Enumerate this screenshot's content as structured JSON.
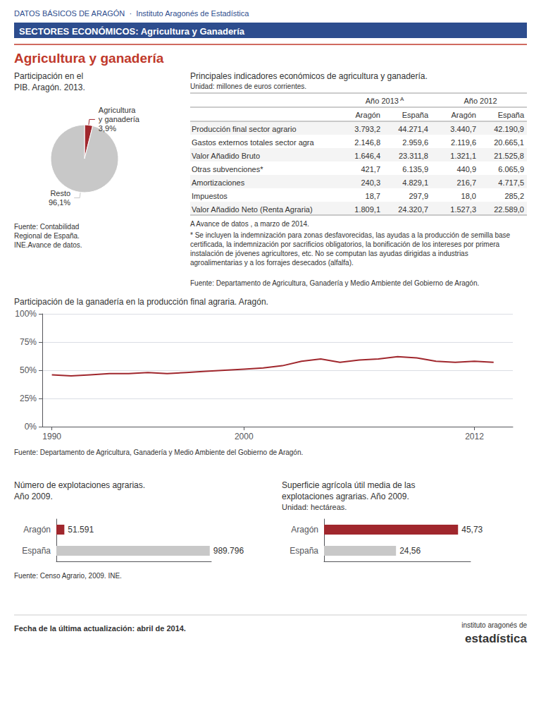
{
  "title": "Agricultura y ganadería",
  "subtitle": "SECTORES ECONÓMICOS: Agricultura y Ganadería",
  "annotations": [
    "DATOS BÁSICOS DE ARAGÓN  ·  Instituto Aragonés de Estadística",
    "Fecha de la última actualización: abril de 2014.",
    "instituto aragonés de",
    "estadística"
  ],
  "chart_data": [
    {
      "type": "pie",
      "title": "Participación en el\nPIB. Aragón. 2013.",
      "categories": [
        "Agricultura\ny ganadería",
        "Resto"
      ],
      "values": [
        3.9,
        96.1
      ],
      "value_labels": [
        "3,9%",
        "96,1%"
      ],
      "colors": [
        "#a0272d",
        "#c8c8c8"
      ],
      "data_labels": true,
      "annotations": [
        "Fuente: Contabilidad\nRegional de España.\nINE.Avance de datos."
      ]
    },
    {
      "type": "table",
      "title": "Principales indicadores económicos de agricultura y ganadería.",
      "subtitle": "Unidad: millones de euros corrientes.",
      "categories": [
        "Producción final sector agrario",
        "Gastos externos totales sector agra",
        "Valor Añadido Bruto",
        "Otras subvenciones*",
        "Amortizaciones",
        "Impuestos",
        "Valor Añadido Neto (Renta Agraria)"
      ],
      "series": [
        {
          "name": "Aragón",
          "group": "Año 2013",
          "group_mark": "A",
          "values": [
            3793.2,
            2146.8,
            1646.4,
            421.7,
            240.3,
            18.7,
            1809.1
          ],
          "value_labels": [
            "3.793,2",
            "2.146,8",
            "1.646,4",
            "421,7",
            "240,3",
            "18,7",
            "1.809,1"
          ]
        },
        {
          "name": "España",
          "group": "Año 2013",
          "group_mark": "A",
          "values": [
            44271.4,
            2959.6,
            23311.8,
            6135.9,
            4829.1,
            297.9,
            24320.7
          ],
          "value_labels": [
            "44.271,4",
            "2.959,6",
            "23.311,8",
            "6.135,9",
            "4.829,1",
            "297,9",
            "24.320,7"
          ]
        },
        {
          "name": "Aragón",
          "group": "Año 2012",
          "values": [
            3440.7,
            2119.6,
            1321.1,
            440.9,
            216.7,
            18.0,
            1527.3
          ],
          "value_labels": [
            "3.440,7",
            "2.119,6",
            "1.321,1",
            "440,9",
            "216,7",
            "18,0",
            "1.527,3"
          ]
        },
        {
          "name": "España",
          "group": "Año 2012",
          "values": [
            42190.9,
            20665.1,
            21525.8,
            6065.9,
            4717.5,
            285.2,
            22589.0
          ],
          "value_labels": [
            "42.190,9",
            "20.665,1",
            "21.525,8",
            "6.065,9",
            "4.717,5",
            "285,2",
            "22.589,0"
          ]
        }
      ],
      "annotations": [
        "A Avance de datos , a marzo de 2014.",
        "* Se incluyen la indemnización para zonas desfavorecidas, las ayudas a la producción de semilla base certificada, la indemnización por sacrificios obligatorios, la bonificación de los intereses por primera instalación de jóvenes agricultores, etc. No se computan las ayudas dirigidas a industrias agroalimentarias y a los forrajes desecados (alfalfa).",
        "Fuente: Departamento de Agricultura, Ganadería y Medio Ambiente del Gobierno de Aragón."
      ]
    },
    {
      "type": "line",
      "title": "Participación de la ganadería en la producción final agraria. Aragón.",
      "x": [
        1990,
        1991,
        1992,
        1993,
        1994,
        1995,
        1996,
        1997,
        1998,
        1999,
        2000,
        2001,
        2002,
        2003,
        2004,
        2005,
        2006,
        2007,
        2008,
        2009,
        2010,
        2011,
        2012,
        2013
      ],
      "values": [
        46,
        45,
        46,
        47,
        47,
        48,
        47,
        48,
        49,
        50,
        51,
        52,
        54,
        58,
        60,
        57,
        59,
        60,
        62,
        61,
        58,
        57,
        58,
        57
      ],
      "color": "#a0272d",
      "xlim": [
        1989.5,
        2014
      ],
      "xticks": [
        1990,
        2000,
        2012
      ],
      "ylim": [
        0,
        100
      ],
      "yticks": [
        {
          "value": 0,
          "label": "0%"
        },
        {
          "value": 25,
          "label": "25%"
        },
        {
          "value": 50,
          "label": "50%"
        },
        {
          "value": 75,
          "label": "75%"
        },
        {
          "value": 100,
          "label": "100%"
        }
      ],
      "grid": true,
      "annotations": [
        "Fuente: Departamento de Agricultura, Ganadería y Medio Ambiente del Gobierno de Aragón."
      ]
    },
    {
      "type": "bar",
      "orientation": "horizontal",
      "title": "Número de explotaciones agrarias.\nAño 2009.",
      "categories": [
        "Aragón",
        "España"
      ],
      "values": [
        51591,
        989796
      ],
      "value_labels": [
        "51.591",
        "989.796"
      ],
      "colors": [
        "#a0272d",
        "#c8c8c8"
      ],
      "data_labels": true,
      "tick_labels": "y",
      "grid": false,
      "xlim": [
        0,
        1000000
      ],
      "annotations": [
        "Fuente: Censo Agrario, 2009. INE."
      ]
    },
    {
      "type": "bar",
      "orientation": "horizontal",
      "title": "Superficie agrícola útil media de las\nexplotaciones agrarias. Año 2009.",
      "subtitle": "Unidad: hectáreas.",
      "categories": [
        "Aragón",
        "España"
      ],
      "values": [
        45.73,
        24.56
      ],
      "value_labels": [
        "45,73",
        "24,56"
      ],
      "colors": [
        "#a0272d",
        "#c8c8c8"
      ],
      "data_labels": true,
      "tick_labels": "y",
      "grid": false,
      "xlim": [
        0,
        50
      ]
    }
  ]
}
